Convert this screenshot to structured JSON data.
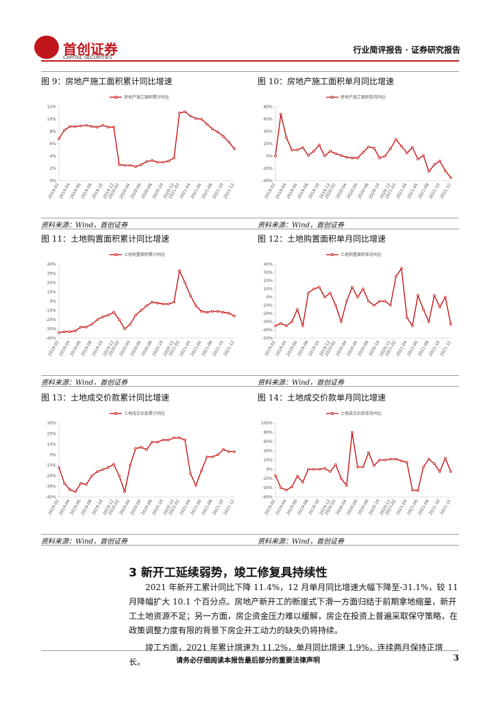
{
  "header": {
    "logo": "首创证券",
    "logo_en": "CAPITAL SECURITIES",
    "right": "行业简评报告 · 证券研究报告"
  },
  "chart_data": [
    {
      "type": "line",
      "title": "图 9：房地产施工面积累计同比增速",
      "source": "资料来源：Wind，首创证券",
      "categories": [
        "2019-02",
        null,
        "2019-04",
        null,
        "2019-06",
        null,
        "2019-08",
        null,
        "2019-10",
        null,
        "2019-12",
        "2020-02",
        null,
        "2020-04",
        null,
        "2020-06",
        null,
        "2020-08",
        null,
        "2020-10",
        null,
        "2020-12",
        "2021-02",
        null,
        "2021-04",
        null,
        "2021-06",
        null,
        "2021-08",
        null,
        "2021-10",
        null,
        "2021-12"
      ],
      "series": [
        {
          "name": "房地产施工面积累计同比",
          "color": "#c00000",
          "values": [
            6.8,
            8.2,
            8.8,
            8.8,
            8.9,
            9.0,
            8.8,
            8.7,
            9.0,
            8.7,
            8.7,
            2.6,
            2.5,
            2.5,
            2.3,
            2.6,
            3.1,
            3.3,
            3.0,
            3.0,
            3.2,
            3.7,
            11.0,
            11.2,
            10.5,
            10.1,
            10.0,
            9.2,
            8.4,
            7.9,
            7.2,
            6.3,
            5.2
          ]
        }
      ],
      "ylim": [
        0,
        12
      ],
      "yticks": [
        {
          "value": 0,
          "label": "0%"
        },
        {
          "value": 2,
          "label": "2%"
        },
        {
          "value": 4,
          "label": "4%"
        },
        {
          "value": 6,
          "label": "6%"
        },
        {
          "value": 8,
          "label": "8%"
        },
        {
          "value": 10,
          "label": "10%"
        },
        {
          "value": 12,
          "label": "12%"
        }
      ]
    },
    {
      "type": "line",
      "title": "图 10：房地产施工面积单月同比增速",
      "source": "资料来源：Wind，首创证券",
      "categories": [
        "2019-02",
        null,
        "2019-04",
        null,
        "2019-06",
        null,
        "2019-08",
        null,
        "2019-10",
        null,
        "2019-12",
        "2020-02",
        null,
        "2020-04",
        null,
        "2020-06",
        null,
        "2020-08",
        null,
        "2020-10",
        null,
        "2020-12",
        "2021-02",
        null,
        "2021-04",
        null,
        "2021-06",
        null,
        "2021-08",
        null,
        "2021-10",
        null,
        "2021-12"
      ],
      "series": [
        {
          "name": "房地产施工面积单月同比",
          "color": "#c00000",
          "values": [
            0,
            68,
            30,
            10,
            10,
            14,
            1,
            8,
            18,
            0,
            8,
            4,
            1,
            -2,
            -3,
            -3,
            6,
            15,
            13,
            -3,
            0,
            12,
            27,
            16,
            5,
            14,
            -5,
            1,
            -25,
            -14,
            -8,
            -24,
            -35
          ]
        }
      ],
      "ylim": [
        -40,
        80
      ],
      "yticks": [
        {
          "value": -40,
          "label": "-40%"
        },
        {
          "value": -20,
          "label": "-20%"
        },
        {
          "value": 0,
          "label": "0%"
        },
        {
          "value": 20,
          "label": "20%"
        },
        {
          "value": 40,
          "label": "40%"
        },
        {
          "value": 60,
          "label": "60%"
        },
        {
          "value": 80,
          "label": "80%"
        }
      ]
    },
    {
      "type": "line",
      "title": "图 11：土地购置面积累计同比增速",
      "source": "资料来源：Wind，首创证券",
      "categories": [
        "2019-02",
        null,
        "2019-04",
        null,
        "2019-06",
        null,
        "2019-08",
        null,
        "2019-10",
        null,
        "2019-12",
        "2020-02",
        null,
        "2020-04",
        null,
        "2020-06",
        null,
        "2020-08",
        null,
        "2020-10",
        null,
        "2020-12",
        "2021-02",
        null,
        "2021-04",
        null,
        "2021-06",
        null,
        "2021-08",
        null,
        "2021-10",
        null,
        "2021-12"
      ],
      "series": [
        {
          "name": "土地购置面积累计同比",
          "color": "#c00000",
          "values": [
            -34,
            -33,
            -33,
            -32,
            -28,
            -28,
            -25,
            -20,
            -17,
            -15,
            -12,
            -20,
            -30,
            -25,
            -15,
            -10,
            -5,
            -1,
            -2,
            -3,
            -3,
            -1,
            33,
            20,
            6,
            -5,
            -11,
            -12,
            -11,
            -11,
            -12,
            -13,
            -16
          ]
        }
      ],
      "ylim": [
        -40,
        40
      ],
      "yticks": [
        {
          "value": -40,
          "label": "-40%"
        },
        {
          "value": -30,
          "label": "-30%"
        },
        {
          "value": -20,
          "label": "-20%"
        },
        {
          "value": -10,
          "label": "-10%"
        },
        {
          "value": 0,
          "label": "0%"
        },
        {
          "value": 10,
          "label": "10%"
        },
        {
          "value": 20,
          "label": "20%"
        },
        {
          "value": 30,
          "label": "30%"
        },
        {
          "value": 40,
          "label": "40%"
        }
      ]
    },
    {
      "type": "line",
      "title": "图 12：土地购置面积单月同比增速",
      "source": "资料来源：Wind，首创证券",
      "categories": [
        "2019-02",
        null,
        "2019-04",
        null,
        "2019-06",
        null,
        "2019-08",
        null,
        "2019-10",
        null,
        "2019-12",
        "2020-02",
        null,
        "2020-04",
        null,
        "2020-06",
        null,
        "2020-08",
        null,
        "2020-10",
        null,
        "2020-12",
        "2021-02",
        null,
        "2021-04",
        null,
        "2021-06",
        null,
        "2021-08",
        null,
        "2021-10",
        null,
        "2021-12"
      ],
      "series": [
        {
          "name": "土地购置面积单月同比",
          "color": "#c00000",
          "values": [
            -35,
            -32,
            -35,
            -30,
            -15,
            -35,
            5,
            10,
            12,
            0,
            5,
            -10,
            -30,
            -5,
            12,
            0,
            10,
            -5,
            -10,
            -5,
            -5,
            -10,
            25,
            35,
            -25,
            -35,
            2,
            -15,
            -30,
            2,
            -12,
            0,
            -33
          ]
        }
      ],
      "ylim": [
        -50,
        40
      ],
      "yticks": [
        {
          "value": -50,
          "label": "-50%"
        },
        {
          "value": -40,
          "label": "-40%"
        },
        {
          "value": -30,
          "label": "-30%"
        },
        {
          "value": -20,
          "label": "-20%"
        },
        {
          "value": -10,
          "label": "-10%"
        },
        {
          "value": 0,
          "label": "0%"
        },
        {
          "value": 10,
          "label": "10%"
        },
        {
          "value": 20,
          "label": "20%"
        },
        {
          "value": 30,
          "label": "30%"
        },
        {
          "value": 40,
          "label": "40%"
        }
      ]
    },
    {
      "type": "line",
      "title": "图 13：土地成交价款累计同比增速",
      "source": "资料来源：Wind，首创证券",
      "categories": [
        "2019-02",
        null,
        "2019-04",
        null,
        "2019-06",
        null,
        "2019-08",
        null,
        "2019-10",
        null,
        "2019-12",
        "2020-02",
        null,
        "2020-04",
        null,
        "2020-06",
        null,
        "2020-08",
        null,
        "2020-10",
        null,
        "2020-12",
        "2021-02",
        null,
        "2021-04",
        null,
        "2021-06",
        null,
        "2021-08",
        null,
        "2021-10",
        null,
        "2021-12"
      ],
      "series": [
        {
          "name": "土地成交价款累计同比",
          "color": "#c00000",
          "values": [
            -12,
            -27,
            -33,
            -35,
            -27,
            -28,
            -20,
            -16,
            -14,
            -12,
            -9,
            -20,
            -35,
            -10,
            6,
            7,
            5,
            12,
            12,
            14,
            14,
            16,
            16,
            14,
            -18,
            -29,
            -15,
            -2,
            -2,
            0,
            5,
            3,
            3
          ]
        }
      ],
      "ylim": [
        -40,
        30
      ],
      "yticks": [
        {
          "value": -40,
          "label": "-40%"
        },
        {
          "value": -30,
          "label": "-30%"
        },
        {
          "value": -20,
          "label": "-20%"
        },
        {
          "value": -10,
          "label": "-10%"
        },
        {
          "value": 0,
          "label": "0%"
        },
        {
          "value": 10,
          "label": "10%"
        },
        {
          "value": 20,
          "label": "20%"
        },
        {
          "value": 30,
          "label": "30%"
        }
      ]
    },
    {
      "type": "line",
      "title": "图 14：土地成交价款单月同比增速",
      "source": "资料来源：Wind，首创证券",
      "categories": [
        "2019-02",
        null,
        "2019-04",
        null,
        "2019-06",
        null,
        "2019-08",
        null,
        "2019-10",
        null,
        "2019-12",
        "2020-02",
        null,
        "2020-04",
        null,
        "2020-06",
        null,
        "2020-08",
        null,
        "2020-10",
        null,
        "2020-12",
        "2021-02",
        null,
        "2021-04",
        null,
        "2021-06",
        null,
        "2021-08",
        null,
        "2021-10",
        null,
        "2021-12"
      ],
      "series": [
        {
          "name": "土地成交价款单月同比",
          "color": "#c00000",
          "values": [
            -14,
            -40,
            -45,
            -38,
            -15,
            -28,
            0,
            0,
            0,
            2,
            -5,
            10,
            -20,
            -35,
            80,
            5,
            5,
            36,
            8,
            20,
            20,
            22,
            22,
            18,
            15,
            -45,
            -46,
            5,
            22,
            12,
            -5,
            24,
            -5
          ]
        }
      ],
      "ylim": [
        -60,
        100
      ],
      "yticks": [
        {
          "value": -60,
          "label": "-60%"
        },
        {
          "value": -40,
          "label": "-40%"
        },
        {
          "value": -20,
          "label": "-20%"
        },
        {
          "value": 0,
          "label": "0%"
        },
        {
          "value": 20,
          "label": "20%"
        },
        {
          "value": 40,
          "label": "40%"
        },
        {
          "value": 60,
          "label": "60%"
        },
        {
          "value": 80,
          "label": "80%"
        },
        {
          "value": 100,
          "label": "100%"
        }
      ]
    }
  ],
  "body": {
    "heading": "3 新开工延续弱势，竣工修复具持续性",
    "paragraphs": [
      "2021 年新开工累计同比下降 11.4%，12 月单月同比增速大幅下降至-31.1%，较 11 月降幅扩大 10.1 个百分点。房地产新开工的断崖式下滑一方面归结于前期拿地缩量，新开工土地资源不足；另一方面，房企资金压力难以缓解，房企在投资上普遍采取保守策略，在政策调整力度有限的背景下房企开工动力的缺失仍将持续。",
      "竣工方面，2021 年累计增速为 11.2%，单月同比增速 1.9%，连续两月保持正增长。"
    ]
  },
  "footer": {
    "notice": "请务必仔细阅读本报告最后部分的重要法律声明",
    "page": "3"
  }
}
